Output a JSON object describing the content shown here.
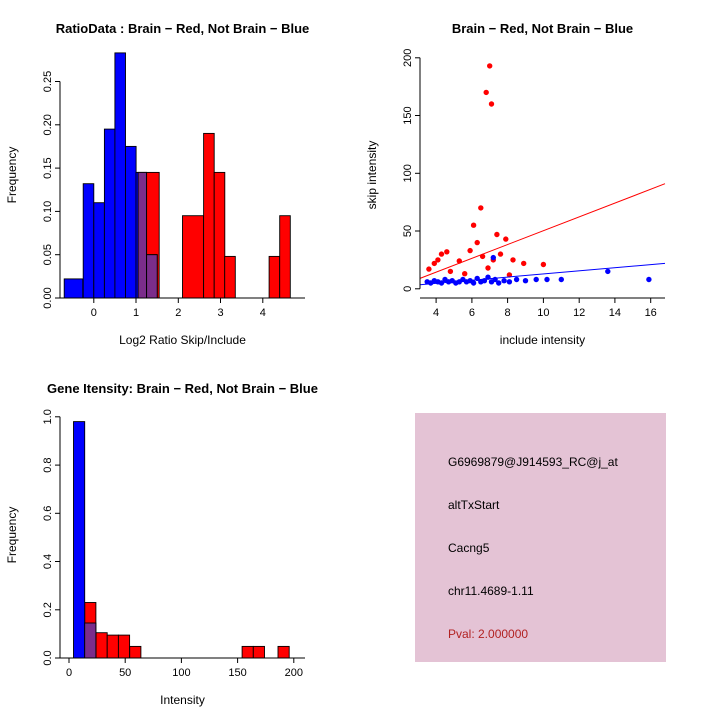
{
  "page": {
    "background": "#FFFFFF"
  },
  "colors": {
    "brain": "#FF0000",
    "not_brain": "#0000FF",
    "overlap": "#7B2D8B",
    "axis": "#000000"
  },
  "chart_data": [
    {
      "id": "ratio-histogram",
      "type": "bar",
      "title": "RatioData : Brain − Red, Not Brain − Blue",
      "xlabel": "Log2 Ratio Skip/Include",
      "ylabel": "Frequency",
      "xlim": [
        -0.8,
        5.0
      ],
      "ylim": [
        0,
        0.284
      ],
      "xticks": [
        0,
        1,
        2,
        3,
        4
      ],
      "xtick_labels": [
        "0",
        "1",
        "2",
        "3",
        "4"
      ],
      "yticks": [
        0,
        0.05,
        0.1,
        0.15,
        0.2,
        0.25
      ],
      "ytick_labels": [
        "0.00",
        "0.05",
        "0.10",
        "0.15",
        "0.20",
        "0.25"
      ],
      "legend": "Brain = red bars, Not Brain = blue bars, overlap = purple",
      "series": [
        {
          "name": "brain-red-bars",
          "color": "#FF0000",
          "bars": [
            [
              1.05,
              0.5,
              0.145
            ],
            [
              2.1,
              0.5,
              0.095
            ],
            [
              2.6,
              0.25,
              0.19
            ],
            [
              2.85,
              0.25,
              0.145
            ],
            [
              3.1,
              0.25,
              0.048
            ],
            [
              4.15,
              0.25,
              0.048
            ],
            [
              4.4,
              0.25,
              0.095
            ]
          ]
        },
        {
          "name": "not-brain-blue-bars",
          "color": "#0000FF",
          "bars": [
            [
              -0.7,
              0.44,
              0.022
            ],
            [
              -0.25,
              0.25,
              0.132
            ],
            [
              0,
              0.25,
              0.11
            ],
            [
              0.25,
              0.25,
              0.195
            ],
            [
              0.5,
              0.25,
              0.283
            ],
            [
              0.75,
              0.25,
              0.175
            ],
            [
              1.0,
              0.25,
              0.145
            ],
            [
              1.25,
              0.25,
              0.05
            ]
          ]
        },
        {
          "name": "overlap-purple-bars",
          "color": "#7B2D8B",
          "bars": [
            [
              1.05,
              0.2,
              0.145
            ],
            [
              1.25,
              0.25,
              0.05
            ]
          ]
        }
      ]
    },
    {
      "id": "intensity-scatter",
      "type": "scatter",
      "title": "Brain − Red, Not Brain − Blue",
      "xlabel": "include intensity",
      "ylabel": "skip intensity",
      "xlim": [
        3.1,
        16.8
      ],
      "ylim": [
        -8,
        205
      ],
      "xticks": [
        4,
        6,
        8,
        10,
        12,
        14,
        16
      ],
      "xtick_labels": [
        "4",
        "6",
        "8",
        "10",
        "12",
        "14",
        "16"
      ],
      "yticks": [
        0,
        50,
        100,
        150,
        200
      ],
      "ytick_labels": [
        "0",
        "50",
        "100",
        "150",
        "200"
      ],
      "legend": "Brain = red points/line, Not Brain = blue points/line",
      "series": [
        {
          "name": "brain-red-points",
          "color": "#FF0000",
          "points": [
            [
              7.0,
              193
            ],
            [
              6.8,
              170
            ],
            [
              7.1,
              160
            ],
            [
              6.5,
              70
            ],
            [
              6.1,
              55
            ],
            [
              7.4,
              47
            ],
            [
              7.9,
              43
            ],
            [
              6.3,
              40
            ],
            [
              4.6,
              32
            ],
            [
              5.9,
              33
            ],
            [
              4.3,
              30
            ],
            [
              7.6,
              30
            ],
            [
              6.6,
              28
            ],
            [
              4.1,
              25
            ],
            [
              5.3,
              24
            ],
            [
              7.2,
              25
            ],
            [
              8.3,
              25
            ],
            [
              8.9,
              22
            ],
            [
              3.9,
              22
            ],
            [
              10.0,
              21
            ],
            [
              6.9,
              18
            ],
            [
              3.6,
              17
            ],
            [
              4.8,
              15
            ],
            [
              5.6,
              13
            ],
            [
              8.1,
              12
            ]
          ]
        },
        {
          "name": "not-brain-blue-points",
          "color": "#0000FF",
          "points": [
            [
              3.5,
              6
            ],
            [
              3.7,
              5
            ],
            [
              3.9,
              7
            ],
            [
              4.1,
              6
            ],
            [
              4.3,
              5
            ],
            [
              4.5,
              8
            ],
            [
              4.7,
              6
            ],
            [
              4.9,
              7
            ],
            [
              5.1,
              5
            ],
            [
              5.3,
              6
            ],
            [
              5.5,
              8
            ],
            [
              5.7,
              6
            ],
            [
              5.9,
              7
            ],
            [
              6.1,
              5
            ],
            [
              6.3,
              9
            ],
            [
              6.5,
              6
            ],
            [
              6.7,
              7
            ],
            [
              6.9,
              10
            ],
            [
              7.1,
              6
            ],
            [
              7.3,
              8
            ],
            [
              7.5,
              5
            ],
            [
              7.8,
              7
            ],
            [
              8.1,
              6
            ],
            [
              8.5,
              8
            ],
            [
              9.0,
              7
            ],
            [
              9.6,
              8
            ],
            [
              10.2,
              8
            ],
            [
              11.0,
              8
            ],
            [
              7.2,
              27
            ],
            [
              13.6,
              15
            ],
            [
              15.9,
              8
            ]
          ]
        }
      ],
      "lines": [
        {
          "name": "brain-fit-line",
          "color": "#FF0000",
          "x1": 3.1,
          "y1": 9,
          "x2": 16.8,
          "y2": 91
        },
        {
          "name": "not-brain-fit-line",
          "color": "#0000FF",
          "x1": 3.1,
          "y1": 3.5,
          "x2": 16.8,
          "y2": 22
        }
      ]
    },
    {
      "id": "gene-intensity-histogram",
      "type": "bar",
      "title": "Gene Itensity: Brain − Red, Not Brain − Blue",
      "xlabel": "Intensity",
      "ylabel": "Frequency",
      "xlim": [
        -8,
        210
      ],
      "ylim": [
        0,
        1.02
      ],
      "xticks": [
        0,
        50,
        100,
        150,
        200
      ],
      "xtick_labels": [
        "0",
        "50",
        "100",
        "150",
        "200"
      ],
      "yticks": [
        0,
        0.2,
        0.4,
        0.6,
        0.8,
        1.0
      ],
      "ytick_labels": [
        "0.0",
        "0.2",
        "0.4",
        "0.6",
        "0.8",
        "1.0"
      ],
      "legend": "Brain = red bars, Not Brain = blue bars, overlap = purple",
      "series": [
        {
          "name": "brain-red-bars",
          "color": "#FF0000",
          "bars": [
            [
              14,
              10,
              0.23
            ],
            [
              24,
              10,
              0.105
            ],
            [
              34,
              10,
              0.095
            ],
            [
              44,
              10,
              0.095
            ],
            [
              54,
              10,
              0.048
            ],
            [
              154,
              10,
              0.048
            ],
            [
              164,
              10,
              0.048
            ],
            [
              186,
              10,
              0.048
            ]
          ]
        },
        {
          "name": "not-brain-blue-bars",
          "color": "#0000FF",
          "bars": [
            [
              4,
              10,
              0.98
            ]
          ]
        },
        {
          "name": "overlap-purple-bars",
          "color": "#7B2D8B",
          "bars": [
            [
              14,
              10,
              0.145
            ]
          ]
        }
      ]
    }
  ],
  "info_box": {
    "bg_color": "#E4C3D5",
    "lines": [
      {
        "label": "probe-id",
        "text": "G6969879@J914593_RC@j_at",
        "color": "#000000"
      },
      {
        "label": "event-type",
        "text": "altTxStart",
        "color": "#000000"
      },
      {
        "label": "gene-symbol",
        "text": "Cacng5",
        "color": "#000000"
      },
      {
        "label": "location",
        "text": "chr11.4689-1.11",
        "color": "#000000"
      },
      {
        "label": "pval",
        "text": "Pval: 2.000000",
        "color": "#B22222"
      }
    ]
  }
}
